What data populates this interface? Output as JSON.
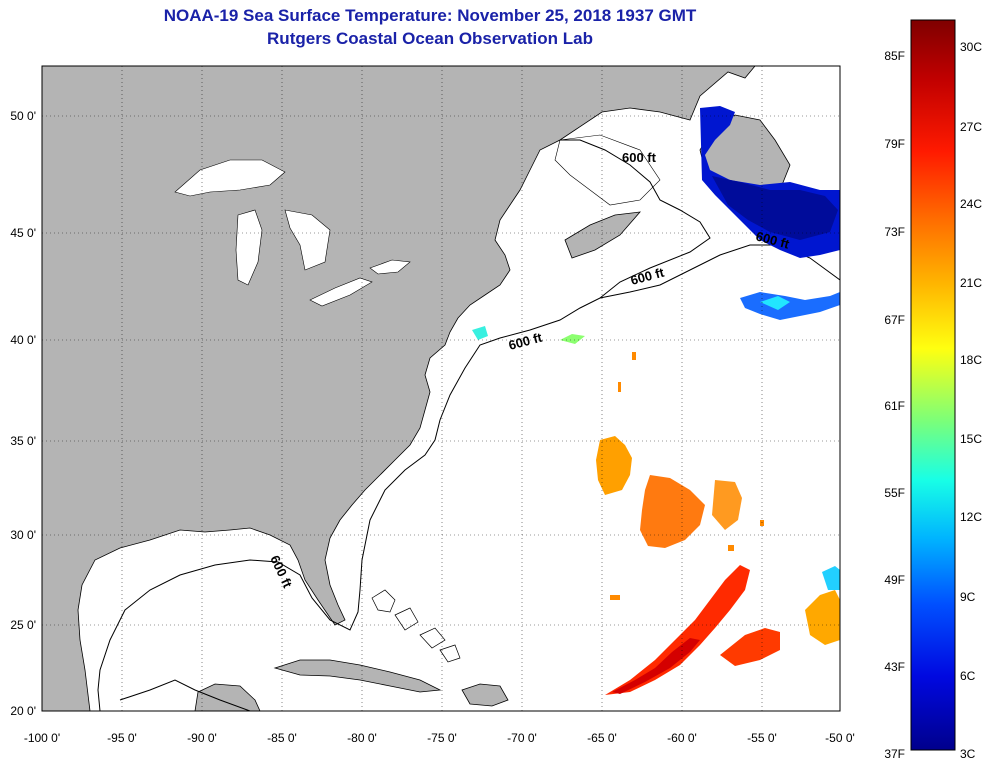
{
  "title": "NOAA-19 Sea Surface Temperature:  November 25, 2018 1937 GMT",
  "subtitle": "Rutgers Coastal Ocean Observation Lab",
  "lat_labels": [
    "50 0'",
    "45 0'",
    "40 0'",
    "35 0'",
    "30 0'",
    "25 0'",
    "20 0'"
  ],
  "lon_labels": [
    "-100 0'",
    "-95 0'",
    "-90 0'",
    "-85 0'",
    "-80 0'",
    "-75 0'",
    "-70 0'",
    "-65 0'",
    "-60 0'",
    "-55 0'",
    "-50 0'"
  ],
  "colorbar": {
    "fahrenheit_labels": [
      "85F",
      "79F",
      "73F",
      "67F",
      "61F",
      "55F",
      "49F",
      "43F",
      "37F"
    ],
    "celsius_labels": [
      "30C",
      "27C",
      "24C",
      "21C",
      "18C",
      "15C",
      "12C",
      "9C",
      "6C",
      "3C"
    ],
    "colors": [
      "#7f0000",
      "#d40000",
      "#ff3a00",
      "#ff8c00",
      "#ffd200",
      "#e8ff18",
      "#8cff70",
      "#30ffd0",
      "#00c8ff",
      "#0070ff",
      "#0010ff",
      "#00008c"
    ]
  },
  "contour_labels": [
    "600 ft",
    "600 ft",
    "600 ft",
    "600 ft",
    "600 ft"
  ],
  "colors": {
    "land": "#b4b4b4",
    "ocean": "#ffffff",
    "title": "#1a22a8"
  }
}
